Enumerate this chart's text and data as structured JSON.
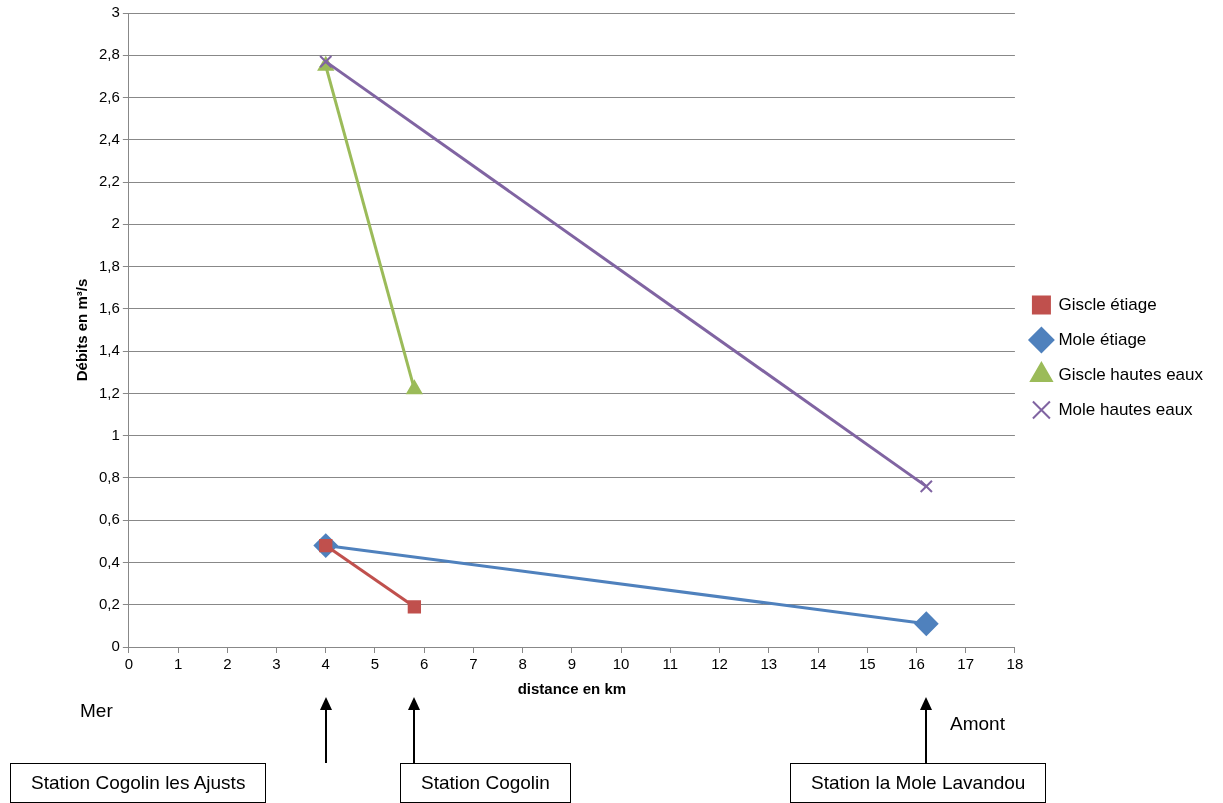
{
  "chart_data": {
    "type": "line",
    "xlabel": "distance en km",
    "ylabel": "Débits en m³/s",
    "xlim": [
      0,
      18
    ],
    "xticks": [
      0,
      1,
      2,
      3,
      4,
      5,
      6,
      7,
      8,
      9,
      10,
      11,
      12,
      13,
      14,
      15,
      16,
      17,
      18
    ],
    "ylim": [
      0,
      3
    ],
    "yticks": [
      0,
      {
        "value": 0.2,
        "label": "0,2"
      },
      {
        "value": 0.4,
        "label": "0,4"
      },
      {
        "value": 0.6,
        "label": "0,6"
      },
      {
        "value": 0.8,
        "label": "0,8"
      },
      1,
      {
        "value": 1.2,
        "label": "1,2"
      },
      {
        "value": 1.4,
        "label": "1,4"
      },
      {
        "value": 1.6,
        "label": "1,6"
      },
      {
        "value": 1.8,
        "label": "1,8"
      },
      2,
      {
        "value": 2.2,
        "label": "2,2"
      },
      {
        "value": 2.4,
        "label": "2,4"
      },
      {
        "value": 2.6,
        "label": "2,6"
      },
      {
        "value": 2.8,
        "label": "2,8"
      },
      3
    ],
    "grid": "y",
    "legend": "right",
    "series": [
      {
        "name": "Giscle étiage",
        "color": "#c0504d",
        "marker": "square",
        "x": [
          4,
          5.8
        ],
        "values": [
          0.48,
          0.19
        ]
      },
      {
        "name": "Mole étiage",
        "color": "#4f81bd",
        "marker": "diamond",
        "x": [
          4,
          16.2
        ],
        "values": [
          0.48,
          0.11
        ]
      },
      {
        "name": "Giscle hautes eaux",
        "color": "#9bbb59",
        "marker": "triangle",
        "x": [
          4,
          5.8
        ],
        "values": [
          2.75,
          1.22
        ]
      },
      {
        "name": "Mole hautes eaux",
        "color": "#8064a2",
        "marker": "cross",
        "x": [
          4,
          16.2
        ],
        "values": [
          2.77,
          0.76
        ]
      }
    ],
    "annotations": [
      "Mer",
      "Amont",
      "Station Cogolin les Ajusts",
      "Station Cogolin",
      "Station la Mole Lavandou"
    ]
  }
}
